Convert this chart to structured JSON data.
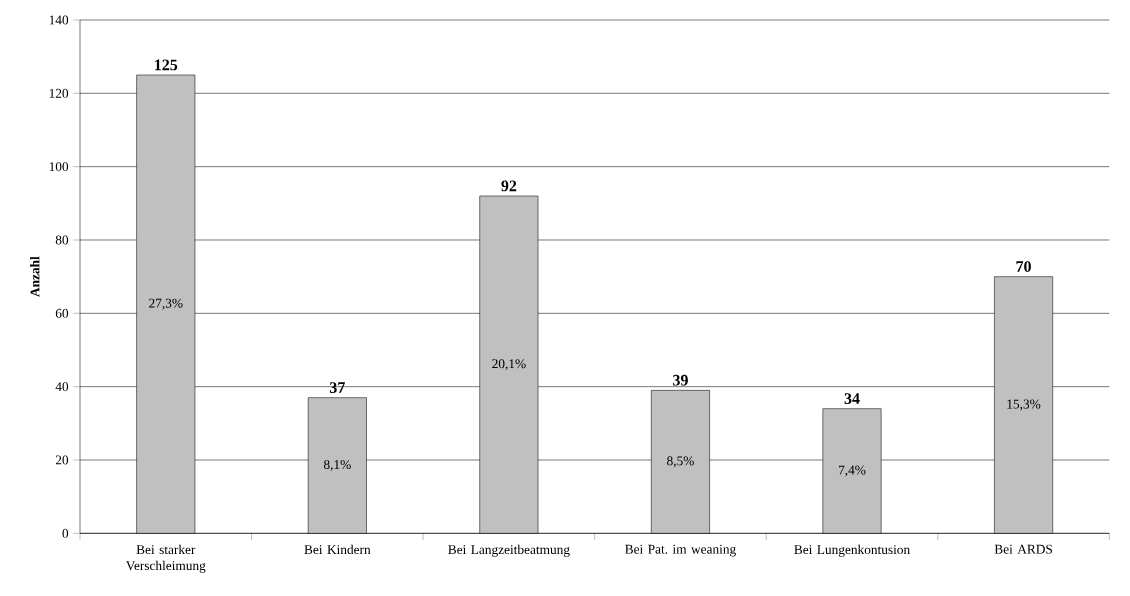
{
  "chart_data": {
    "type": "bar",
    "ylabel": "Anzahl",
    "categories": [
      "Bei starker Verschleimung",
      "Bei Kindern",
      "Bei Langzeitbeatmung",
      "Bei Pat. im weaning",
      "Bei Lungenkontusion",
      "Bei ARDS"
    ],
    "values": [
      125,
      37,
      92,
      39,
      34,
      70
    ],
    "color": "#c0c0c0",
    "data_labels": true,
    "ylim": [
      0,
      140
    ],
    "yticks": [
      0,
      20,
      40,
      60,
      80,
      100,
      120,
      140
    ],
    "grid": "y",
    "annotations": [
      "27,3%",
      "8,1%",
      "20,1%",
      "8,5%",
      "7,4%",
      "15,3%"
    ]
  }
}
